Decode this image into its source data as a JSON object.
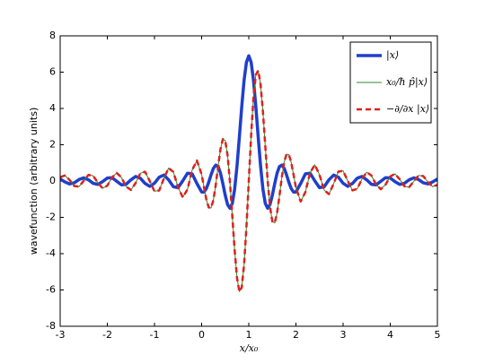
{
  "chart_data": {
    "type": "line",
    "xlabel": "x/x₀",
    "ylabel": "wavefunction (arbitrary units)",
    "xlim": [
      -3,
      5
    ],
    "ylim": [
      -8,
      8
    ],
    "xticks": [
      -3,
      -2,
      -1,
      0,
      1,
      2,
      3,
      4,
      5
    ],
    "yticks": [
      -8,
      -6,
      -4,
      -2,
      0,
      2,
      4,
      6,
      8
    ],
    "legend": "upper right",
    "x": [
      -3,
      -2.9,
      -2.8,
      -2.7,
      -2.6,
      -2.5,
      -2.4,
      -2.3,
      -2.2,
      -2.1,
      -2,
      -1.9,
      -1.8,
      -1.7,
      -1.6,
      -1.5,
      -1.4,
      -1.3,
      -1.2,
      -1.1,
      -1,
      -0.9,
      -0.8,
      -0.7,
      -0.6,
      -0.5,
      -0.4,
      -0.3,
      -0.2,
      -0.1,
      0,
      0.05,
      0.1,
      0.15,
      0.2,
      0.25,
      0.3,
      0.35,
      0.4,
      0.45,
      0.5,
      0.55,
      0.6,
      0.65,
      0.7,
      0.75,
      0.8,
      0.85,
      0.9,
      0.95,
      1,
      1.05,
      1.1,
      1.15,
      1.2,
      1.25,
      1.3,
      1.35,
      1.4,
      1.45,
      1.5,
      1.55,
      1.6,
      1.65,
      1.7,
      1.75,
      1.8,
      1.85,
      1.9,
      1.95,
      2,
      2.1,
      2.2,
      2.3,
      2.4,
      2.5,
      2.6,
      2.7,
      2.8,
      2.9,
      3,
      3.1,
      3.2,
      3.3,
      3.4,
      3.5,
      3.6,
      3.7,
      3.8,
      3.9,
      4,
      4.1,
      4.2,
      4.3,
      4.4,
      4.5,
      4.6,
      4.7,
      4.8,
      4.9,
      5
    ],
    "series": [
      {
        "name": "|x⟩",
        "color": "#1f3fcc",
        "width": 3.5,
        "dash": false,
        "values": [
          0.112,
          -0.047,
          -0.16,
          -0.094,
          0.085,
          0.176,
          0.067,
          -0.126,
          -0.185,
          -0.032,
          0.168,
          0.186,
          -0.012,
          -0.211,
          -0.177,
          0.067,
          0.253,
          0.157,
          -0.132,
          -0.293,
          -0.122,
          0.212,
          0.331,
          0.068,
          -0.308,
          -0.365,
          0.012,
          0.432,
          0.394,
          -0.137,
          -0.603,
          -0.608,
          -0.417,
          -0.069,
          0.345,
          0.702,
          0.88,
          0.796,
          0.434,
          -0.138,
          -0.777,
          -1.295,
          -1.499,
          -1.234,
          -0.446,
          0.826,
          2.415,
          4.083,
          5.545,
          6.543,
          6.9,
          6.543,
          5.545,
          4.083,
          2.415,
          0.826,
          -0.446,
          -1.234,
          -1.499,
          -1.295,
          -0.777,
          -0.138,
          0.434,
          0.796,
          0.88,
          0.702,
          0.345,
          -0.069,
          -0.417,
          -0.608,
          -0.603,
          -0.137,
          0.394,
          0.432,
          0.012,
          -0.365,
          -0.308,
          0.068,
          0.331,
          0.212,
          -0.122,
          -0.293,
          -0.132,
          0.157,
          0.253,
          0.067,
          -0.177,
          -0.211,
          -0.012,
          0.186,
          0.168,
          -0.032,
          -0.185,
          -0.126,
          0.067,
          0.176,
          0.085,
          -0.094,
          -0.16,
          -0.047,
          0.112
        ]
      },
      {
        "name": "x₀/ħ p̂|x⟩",
        "color": "#2e8b2e",
        "width": 1,
        "dash": false,
        "values": [
          0.209,
          0.309,
          0.057,
          -0.275,
          -0.306,
          0.016,
          0.339,
          0.288,
          -0.101,
          -0.398,
          -0.251,
          0.199,
          0.448,
          0.193,
          -0.308,
          -0.488,
          -0.111,
          0.429,
          0.513,
          0.0,
          -0.565,
          -0.52,
          0.146,
          0.717,
          0.504,
          -0.341,
          -0.898,
          -0.457,
          0.611,
          1.129,
          0.364,
          -0.343,
          -1.021,
          -1.454,
          -1.48,
          -1.038,
          -0.203,
          0.825,
          1.762,
          2.308,
          2.23,
          1.418,
          -0.04,
          -1.915,
          -3.812,
          -5.327,
          -6.09,
          -5.86,
          -4.614,
          -2.539,
          0,
          2.539,
          4.614,
          5.86,
          6.09,
          5.327,
          3.812,
          1.915,
          0.04,
          -1.418,
          -2.23,
          -2.308,
          -1.762,
          -0.825,
          0.203,
          1.038,
          1.48,
          1.454,
          1.021,
          0.343,
          -0.364,
          -1.129,
          -0.611,
          0.457,
          0.898,
          0.341,
          -0.504,
          -0.717,
          -0.146,
          0.52,
          0.565,
          0.0,
          -0.513,
          -0.429,
          0.111,
          0.488,
          0.308,
          -0.193,
          -0.448,
          -0.199,
          0.251,
          0.398,
          0.101,
          -0.288,
          -0.339,
          -0.016,
          0.306,
          0.275,
          -0.057,
          -0.309,
          -0.209
        ]
      },
      {
        "name": "−∂/∂x |x⟩",
        "color": "#e0201b",
        "width": 2.5,
        "dash": true,
        "values": [
          0.209,
          0.309,
          0.057,
          -0.275,
          -0.306,
          0.016,
          0.339,
          0.288,
          -0.101,
          -0.398,
          -0.251,
          0.199,
          0.448,
          0.193,
          -0.308,
          -0.488,
          -0.111,
          0.429,
          0.513,
          0.0,
          -0.565,
          -0.52,
          0.146,
          0.717,
          0.504,
          -0.341,
          -0.898,
          -0.457,
          0.611,
          1.129,
          0.364,
          -0.343,
          -1.021,
          -1.454,
          -1.48,
          -1.038,
          -0.203,
          0.825,
          1.762,
          2.308,
          2.23,
          1.418,
          -0.04,
          -1.915,
          -3.812,
          -5.327,
          -6.09,
          -5.86,
          -4.614,
          -2.539,
          0,
          2.539,
          4.614,
          5.86,
          6.09,
          5.327,
          3.812,
          1.915,
          0.04,
          -1.418,
          -2.23,
          -2.308,
          -1.762,
          -0.825,
          0.203,
          1.038,
          1.48,
          1.454,
          1.021,
          0.343,
          -0.364,
          -1.129,
          -0.611,
          0.457,
          0.898,
          0.341,
          -0.504,
          -0.717,
          -0.146,
          0.52,
          0.565,
          0.0,
          -0.513,
          -0.429,
          0.111,
          0.488,
          0.308,
          -0.193,
          -0.448,
          -0.199,
          0.251,
          0.398,
          0.101,
          -0.288,
          -0.339,
          -0.016,
          0.306,
          0.275,
          -0.057,
          -0.309,
          -0.209
        ]
      }
    ]
  }
}
